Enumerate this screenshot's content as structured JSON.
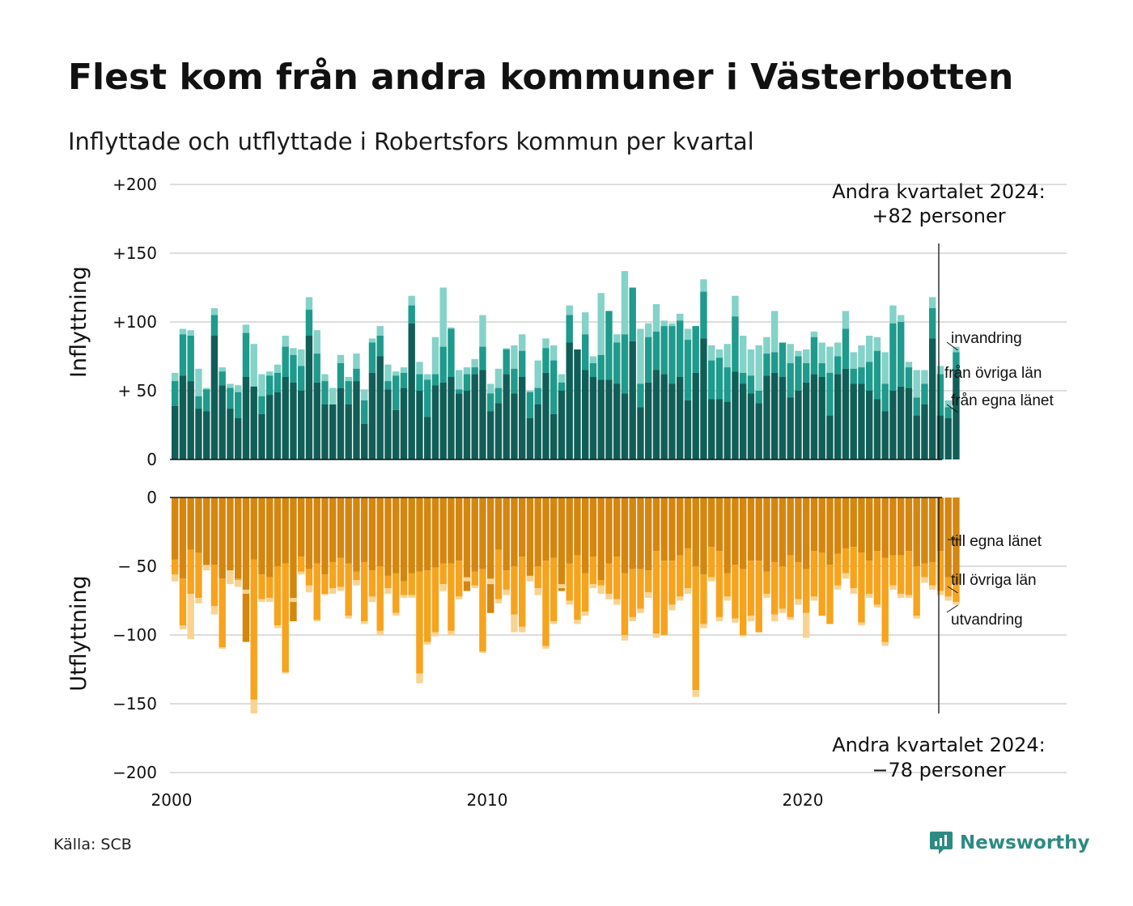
{
  "title": "Flest kom från andra kommuner i Västerbotten",
  "subtitle": "Inflyttade och utflyttade i Robertsfors kommun per kvartal",
  "source": "Källa: SCB",
  "logo": "Newsworthy",
  "annotations": {
    "top_line1": "Andra kvartalet 2024:",
    "top_line2": "+82 personer",
    "bottom_line1": "Andra kvartalet 2024:",
    "bottom_line2": "−78 personer"
  },
  "chart_data": {
    "type": "bar",
    "stacked": true,
    "x_start": "2000 Q1",
    "x_end": "2024 Q2",
    "x_ticks": [
      "2000",
      "2010",
      "2020"
    ],
    "colors": {
      "in_own": "#115e58",
      "in_other": "#1f9a8c",
      "in_immig": "#84d2c8",
      "out_own": "#d4860f",
      "out_other": "#f6a31e",
      "out_emig": "#f8d391"
    },
    "inflow": {
      "ylabel": "Inflyttning",
      "ylim": [
        0,
        200
      ],
      "yticks": [
        "0",
        "+ 50",
        "+100",
        "+150",
        "+200"
      ],
      "series_labels": [
        "från egna länet",
        "från övriga län",
        "invandring"
      ],
      "from_own_county": [
        39,
        61,
        57,
        37,
        35,
        90,
        54,
        37,
        30,
        60,
        53,
        33,
        47,
        49,
        60,
        56,
        50,
        90,
        56,
        40,
        40,
        52,
        40,
        57,
        26,
        63,
        75,
        51,
        36,
        52,
        99,
        50,
        31,
        54,
        56,
        60,
        48,
        50,
        62,
        65,
        35,
        41,
        62,
        48,
        60,
        30,
        40,
        63,
        33,
        50,
        85,
        80,
        65,
        60,
        58,
        58,
        55,
        48,
        86,
        38,
        56,
        65,
        62,
        55,
        60,
        43,
        63,
        88,
        44,
        44,
        42,
        64,
        55,
        48,
        41,
        61,
        63,
        60,
        45,
        50,
        56,
        62,
        60,
        32,
        62,
        66,
        55,
        55,
        50,
        44,
        35,
        50,
        53,
        52,
        32,
        40,
        88,
        32,
        30,
        65
      ],
      "from_other_counties": [
        57,
        91,
        90,
        46,
        51,
        105,
        64,
        52,
        49,
        92,
        50,
        46,
        61,
        63,
        82,
        76,
        68,
        109,
        77,
        57,
        40,
        70,
        57,
        66,
        43,
        85,
        90,
        57,
        61,
        63,
        112,
        62,
        58,
        62,
        82,
        95,
        51,
        62,
        67,
        82,
        48,
        52,
        80,
        66,
        79,
        49,
        52,
        81,
        72,
        56,
        105,
        79,
        91,
        70,
        76,
        108,
        85,
        91,
        125,
        55,
        89,
        93,
        97,
        97,
        101,
        87,
        97,
        122,
        72,
        74,
        67,
        104,
        63,
        61,
        50,
        77,
        78,
        85,
        70,
        75,
        70,
        89,
        70,
        63,
        75,
        95,
        66,
        67,
        71,
        79,
        55,
        99,
        100,
        67,
        45,
        55,
        110,
        62,
        38,
        78
      ],
      "immigration": [
        63,
        95,
        94,
        66,
        52,
        110,
        67,
        55,
        54,
        98,
        84,
        62,
        64,
        69,
        90,
        81,
        80,
        118,
        94,
        62,
        52,
        76,
        60,
        77,
        51,
        88,
        97,
        69,
        64,
        67,
        119,
        71,
        62,
        89,
        125,
        96,
        65,
        67,
        73,
        105,
        55,
        66,
        81,
        83,
        91,
        50,
        72,
        88,
        83,
        62,
        112,
        80,
        107,
        75,
        121,
        100,
        91,
        137,
        62,
        95,
        99,
        113,
        101,
        99,
        106,
        95,
        96,
        131,
        83,
        80,
        84,
        119,
        90,
        80,
        83,
        89,
        108,
        83,
        84,
        79,
        80,
        93,
        85,
        82,
        85,
        108,
        78,
        83,
        90,
        89,
        78,
        112,
        105,
        71,
        65,
        65,
        118,
        68,
        43,
        82
      ]
    },
    "outflow": {
      "ylabel": "Utflyttning",
      "ylim": [
        -200,
        0
      ],
      "yticks": [
        "0",
        "− 50",
        "−100",
        "−150",
        "−200"
      ],
      "series_labels": [
        "till egna länet",
        "till övriga län",
        "utvandring"
      ],
      "to_own_county": [
        -45,
        -59,
        -38,
        -40,
        -50,
        -49,
        -59,
        -53,
        -59,
        -105,
        -45,
        -56,
        -58,
        -50,
        -48,
        -90,
        -43,
        -52,
        -48,
        -56,
        -47,
        -44,
        -48,
        -54,
        -47,
        -53,
        -50,
        -57,
        -55,
        -61,
        -55,
        -54,
        -53,
        -51,
        -48,
        -48,
        -46,
        -68,
        -54,
        -52,
        -84,
        -38,
        -53,
        -50,
        -43,
        -57,
        -50,
        -46,
        -44,
        -68,
        -48,
        -42,
        -55,
        -43,
        -60,
        -48,
        -43,
        -55,
        -52,
        -52,
        -53,
        -39,
        -46,
        -46,
        -42,
        -37,
        -50,
        -56,
        -36,
        -39,
        -55,
        -49,
        -52,
        -46,
        -46,
        -54,
        -47,
        -50,
        -42,
        -47,
        -52,
        -39,
        -40,
        -49,
        -41,
        -37,
        -36,
        -40,
        -46,
        -39,
        -44,
        -42,
        -42,
        -39,
        -50,
        -48,
        -47,
        -39,
        -58,
        -63
      ],
      "to_other_counties": [
        -56,
        -93,
        -70,
        -73,
        -49,
        -79,
        -109,
        -53,
        -60,
        -67,
        -147,
        -74,
        -73,
        -93,
        -127,
        -73,
        -54,
        -64,
        -89,
        -70,
        -66,
        -65,
        -86,
        -60,
        -90,
        -72,
        -97,
        -66,
        -84,
        -71,
        -71,
        -128,
        -105,
        -98,
        -63,
        -97,
        -72,
        -58,
        -64,
        -112,
        -59,
        -74,
        -67,
        -85,
        -94,
        -57,
        -66,
        -108,
        -90,
        -63,
        -75,
        -89,
        -83,
        -63,
        -64,
        -70,
        -74,
        -100,
        -87,
        -81,
        -69,
        -99,
        -100,
        -78,
        -72,
        -66,
        -140,
        -92,
        -58,
        -87,
        -72,
        -88,
        -100,
        -86,
        -98,
        -70,
        -85,
        -81,
        -87,
        -74,
        -84,
        -72,
        -86,
        -92,
        -64,
        -55,
        -66,
        -91,
        -70,
        -78,
        -105,
        -64,
        -70,
        -71,
        -86,
        -58,
        -64,
        -68,
        -72,
        -76
      ],
      "emigration": [
        -61,
        -96,
        -103,
        -77,
        -53,
        -85,
        -110,
        -63,
        -65,
        -70,
        -157,
        -76,
        -76,
        -95,
        -128,
        -76,
        -56,
        -69,
        -90,
        -71,
        -70,
        -68,
        -88,
        -64,
        -92,
        -76,
        -100,
        -70,
        -86,
        -73,
        -73,
        -135,
        -107,
        -101,
        -68,
        -100,
        -74,
        -61,
        -66,
        -113,
        -63,
        -77,
        -71,
        -98,
        -98,
        -61,
        -71,
        -110,
        -92,
        -66,
        -78,
        -92,
        -86,
        -66,
        -70,
        -74,
        -78,
        -104,
        -90,
        -84,
        -73,
        -102,
        -100,
        -82,
        -75,
        -70,
        -145,
        -95,
        -61,
        -90,
        -75,
        -91,
        -101,
        -90,
        -98,
        -73,
        -90,
        -84,
        -89,
        -78,
        -102,
        -75,
        -86,
        -92,
        -67,
        -59,
        -70,
        -93,
        -73,
        -80,
        -108,
        -67,
        -73,
        -73,
        -88,
        -62,
        -67,
        -71,
        -75,
        -78
      ]
    }
  }
}
